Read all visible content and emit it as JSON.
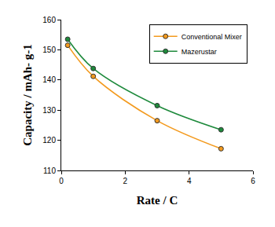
{
  "chart_data": {
    "type": "line",
    "x_label": "Rate / C",
    "y_label": "Capacity / mAh- g-1",
    "series": [
      {
        "name": "Conventional Mixer",
        "color": "#f39a1e",
        "x": [
          0.2,
          1,
          3,
          5
        ],
        "values": [
          151.5,
          141.2,
          126.5,
          117.2
        ]
      },
      {
        "name": "Mazerustar",
        "color": "#1e8a3c",
        "x": [
          0.2,
          1,
          3,
          5
        ],
        "values": [
          153.5,
          143.8,
          131.5,
          123.5
        ]
      }
    ],
    "xlim": [
      0,
      6
    ],
    "xticks": [
      0,
      2,
      4,
      6
    ],
    "ylim": [
      110,
      160
    ],
    "yticks": [
      110,
      120,
      130,
      140,
      150,
      160
    ],
    "grid": false,
    "legend": "upper right",
    "marker": "circle",
    "line_style": "smooth"
  }
}
